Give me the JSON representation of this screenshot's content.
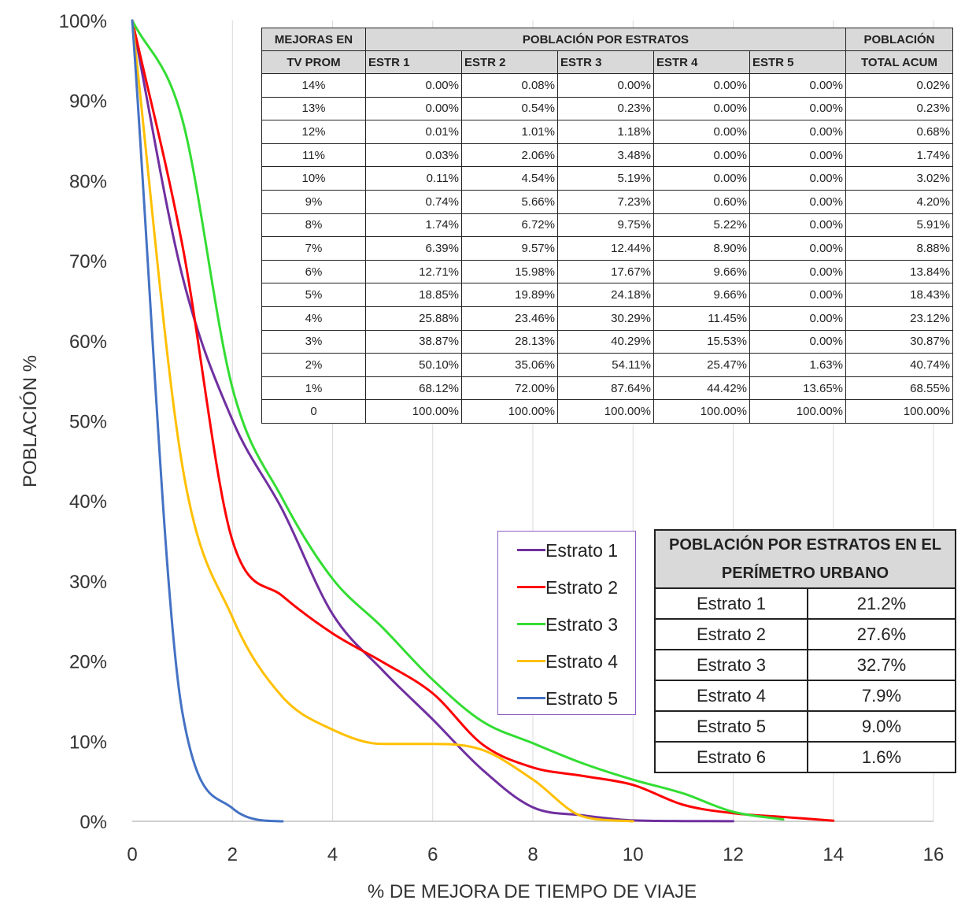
{
  "chart_data": {
    "type": "line",
    "title": "",
    "xlabel": "% DE MEJORA DE TIEMPO DE VIAJE",
    "ylabel": "POBLACIÓN %",
    "xlim": [
      0,
      16
    ],
    "ylim": [
      0,
      100
    ],
    "x_ticks": [
      "0",
      "2",
      "4",
      "6",
      "8",
      "10",
      "12",
      "14",
      "16"
    ],
    "y_ticks": [
      "0%",
      "10%",
      "20%",
      "30%",
      "40%",
      "50%",
      "60%",
      "70%",
      "80%",
      "90%",
      "100%"
    ],
    "grid": "vertical",
    "legend_position": "center-right",
    "series": [
      {
        "name": "Estrato 1",
        "color": "#7030a0",
        "points": [
          [
            0,
            100
          ],
          [
            1,
            68.12
          ],
          [
            2,
            50.1
          ],
          [
            3,
            38.87
          ],
          [
            4,
            25.88
          ],
          [
            5,
            18.85
          ],
          [
            6,
            12.71
          ],
          [
            7,
            6.39
          ],
          [
            8,
            1.74
          ],
          [
            9,
            0.74
          ],
          [
            10,
            0.11
          ],
          [
            11,
            0.03
          ],
          [
            12,
            0.01
          ]
        ]
      },
      {
        "name": "Estrato 2",
        "color": "#ff0000",
        "points": [
          [
            0,
            100
          ],
          [
            1,
            72.0
          ],
          [
            2,
            35.06
          ],
          [
            3,
            28.13
          ],
          [
            4,
            23.46
          ],
          [
            5,
            19.89
          ],
          [
            6,
            15.98
          ],
          [
            7,
            9.57
          ],
          [
            8,
            6.72
          ],
          [
            9,
            5.66
          ],
          [
            10,
            4.54
          ],
          [
            11,
            2.06
          ],
          [
            12,
            1.01
          ],
          [
            13,
            0.54
          ],
          [
            14,
            0.08
          ]
        ]
      },
      {
        "name": "Estrato 3",
        "color": "#33dd33",
        "points": [
          [
            0,
            100
          ],
          [
            1,
            87.64
          ],
          [
            2,
            54.11
          ],
          [
            3,
            40.29
          ],
          [
            4,
            30.29
          ],
          [
            5,
            24.18
          ],
          [
            6,
            17.67
          ],
          [
            7,
            12.44
          ],
          [
            8,
            9.75
          ],
          [
            9,
            7.23
          ],
          [
            10,
            5.19
          ],
          [
            11,
            3.48
          ],
          [
            12,
            1.18
          ],
          [
            13,
            0.23
          ]
        ]
      },
      {
        "name": "Estrato 4",
        "color": "#ffc000",
        "points": [
          [
            0,
            100
          ],
          [
            1,
            44.42
          ],
          [
            2,
            25.47
          ],
          [
            3,
            15.53
          ],
          [
            4,
            11.45
          ],
          [
            5,
            9.66
          ],
          [
            6,
            9.66
          ],
          [
            7,
            8.9
          ],
          [
            8,
            5.22
          ],
          [
            9,
            0.6
          ],
          [
            10,
            0.0
          ]
        ]
      },
      {
        "name": "Estrato 5",
        "color": "#4472c4",
        "points": [
          [
            0,
            100
          ],
          [
            1,
            13.65
          ],
          [
            2,
            1.63
          ],
          [
            2.5,
            0.2
          ],
          [
            3,
            0.0
          ]
        ]
      }
    ]
  },
  "data_table": {
    "header_col1": [
      "MEJORAS EN",
      "TV PROM"
    ],
    "group_header": "POBLACIÓN POR ESTRATOS",
    "total_header": [
      "POBLACIÓN",
      "TOTAL ACUM"
    ],
    "sub_headers": [
      "ESTR 1",
      "ESTR 2",
      "ESTR 3",
      "ESTR 4",
      "ESTR 5"
    ],
    "rows": [
      [
        "14%",
        "0.00%",
        "0.08%",
        "0.00%",
        "0.00%",
        "0.00%",
        "0.02%"
      ],
      [
        "13%",
        "0.00%",
        "0.54%",
        "0.23%",
        "0.00%",
        "0.00%",
        "0.23%"
      ],
      [
        "12%",
        "0.01%",
        "1.01%",
        "1.18%",
        "0.00%",
        "0.00%",
        "0.68%"
      ],
      [
        "11%",
        "0.03%",
        "2.06%",
        "3.48%",
        "0.00%",
        "0.00%",
        "1.74%"
      ],
      [
        "10%",
        "0.11%",
        "4.54%",
        "5.19%",
        "0.00%",
        "0.00%",
        "3.02%"
      ],
      [
        "9%",
        "0.74%",
        "5.66%",
        "7.23%",
        "0.60%",
        "0.00%",
        "4.20%"
      ],
      [
        "8%",
        "1.74%",
        "6.72%",
        "9.75%",
        "5.22%",
        "0.00%",
        "5.91%"
      ],
      [
        "7%",
        "6.39%",
        "9.57%",
        "12.44%",
        "8.90%",
        "0.00%",
        "8.88%"
      ],
      [
        "6%",
        "12.71%",
        "15.98%",
        "17.67%",
        "9.66%",
        "0.00%",
        "13.84%"
      ],
      [
        "5%",
        "18.85%",
        "19.89%",
        "24.18%",
        "9.66%",
        "0.00%",
        "18.43%"
      ],
      [
        "4%",
        "25.88%",
        "23.46%",
        "30.29%",
        "11.45%",
        "0.00%",
        "23.12%"
      ],
      [
        "3%",
        "38.87%",
        "28.13%",
        "40.29%",
        "15.53%",
        "0.00%",
        "30.87%"
      ],
      [
        "2%",
        "50.10%",
        "35.06%",
        "54.11%",
        "25.47%",
        "1.63%",
        "40.74%"
      ],
      [
        "1%",
        "68.12%",
        "72.00%",
        "87.64%",
        "44.42%",
        "13.65%",
        "68.55%"
      ],
      [
        "0",
        "100.00%",
        "100.00%",
        "100.00%",
        "100.00%",
        "100.00%",
        "100.00%"
      ]
    ]
  },
  "summary_table": {
    "title": [
      "POBLACIÓN POR ESTRATOS EN EL",
      "PERÍMETRO URBANO"
    ],
    "rows": [
      [
        "Estrato 1",
        "21.2%"
      ],
      [
        "Estrato 2",
        "27.6%"
      ],
      [
        "Estrato 3",
        "32.7%"
      ],
      [
        "Estrato 4",
        "7.9%"
      ],
      [
        "Estrato 5",
        "9.0%"
      ],
      [
        "Estrato 6",
        "1.6%"
      ]
    ]
  }
}
